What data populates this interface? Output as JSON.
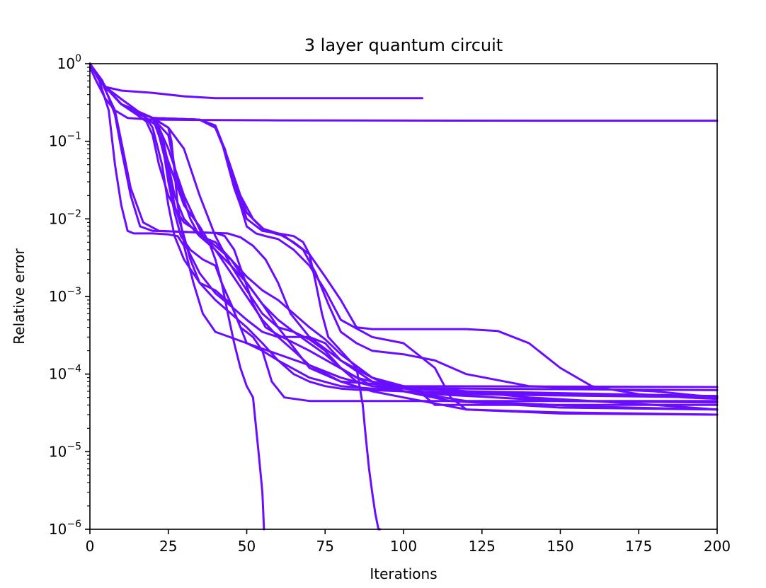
{
  "chart_data": {
    "type": "line",
    "title": "3 layer quantum circuit",
    "xlabel": "Iterations",
    "ylabel": "Relative error",
    "xlim": [
      0,
      200
    ],
    "ylim": [
      1e-06,
      1
    ],
    "yscale": "log",
    "grid": false,
    "legend": "none",
    "line_color": "#6a0dff",
    "x_ticks": [
      0,
      25,
      50,
      75,
      100,
      125,
      150,
      175,
      200
    ],
    "x_tick_labels": [
      "0",
      "25",
      "50",
      "75",
      "100",
      "125",
      "150",
      "175",
      "200"
    ],
    "y_ticks": [
      {
        "value": 1,
        "base": "10",
        "exp": "0"
      },
      {
        "value": 0.1,
        "base": "10",
        "exp": "−1"
      },
      {
        "value": 0.01,
        "base": "10",
        "exp": "−2"
      },
      {
        "value": 0.001,
        "base": "10",
        "exp": "−3"
      },
      {
        "value": 0.0001,
        "base": "10",
        "exp": "−4"
      },
      {
        "value": 1e-05,
        "base": "10",
        "exp": "−5"
      },
      {
        "value": 1e-06,
        "base": "10",
        "exp": "−6"
      }
    ],
    "series": [
      {
        "x": [
          0,
          2,
          5,
          10,
          20,
          30,
          40,
          60,
          80,
          106
        ],
        "y": [
          1.0,
          0.75,
          0.5,
          0.45,
          0.42,
          0.38,
          0.36,
          0.36,
          0.36,
          0.36
        ]
      },
      {
        "x": [
          0,
          2,
          5,
          8,
          12,
          20,
          35,
          60,
          100,
          150,
          200
        ],
        "y": [
          0.9,
          0.6,
          0.35,
          0.25,
          0.2,
          0.19,
          0.188,
          0.186,
          0.185,
          0.184,
          0.184
        ]
      },
      {
        "x": [
          0,
          3,
          6,
          8,
          10,
          12,
          14,
          20,
          25,
          28,
          30,
          33,
          36,
          40,
          50,
          70,
          80,
          90,
          100,
          120,
          150,
          200
        ],
        "y": [
          1.0,
          0.6,
          0.25,
          0.05,
          0.015,
          0.007,
          0.0065,
          0.0065,
          0.0063,
          0.006,
          0.0045,
          0.0015,
          0.0006,
          0.00035,
          0.00025,
          0.00013,
          8e-05,
          6e-05,
          5e-05,
          3.5e-05,
          3.1e-05,
          3e-05
        ]
      },
      {
        "x": [
          0,
          4,
          8,
          10,
          13,
          16,
          20,
          30,
          40,
          43,
          46,
          49,
          52,
          56,
          60,
          70,
          90,
          120,
          160,
          200
        ],
        "y": [
          1.0,
          0.6,
          0.22,
          0.08,
          0.02,
          0.008,
          0.007,
          0.0068,
          0.0066,
          0.006,
          0.004,
          0.0018,
          0.0008,
          0.0004,
          0.00032,
          0.0002,
          7e-05,
          4.5e-05,
          3.8e-05,
          3.5e-05
        ]
      },
      {
        "x": [
          0,
          4,
          8,
          10,
          13,
          17,
          22,
          30,
          44,
          48,
          52,
          56,
          60,
          64,
          70,
          80,
          90,
          110,
          150,
          200
        ],
        "y": [
          1.0,
          0.55,
          0.25,
          0.1,
          0.025,
          0.009,
          0.007,
          0.0068,
          0.0065,
          0.0058,
          0.0045,
          0.003,
          0.0015,
          0.0006,
          0.0003,
          0.00015,
          8e-05,
          5.5e-05,
          4.5e-05,
          4.3e-05
        ]
      },
      {
        "x": [
          0,
          5,
          10,
          15,
          18,
          20,
          22,
          25,
          28,
          30,
          33,
          36,
          40,
          45,
          50,
          55,
          60,
          65,
          70,
          75,
          80,
          90,
          100,
          115,
          150,
          200
        ],
        "y": [
          1.0,
          0.5,
          0.3,
          0.22,
          0.18,
          0.12,
          0.05,
          0.02,
          0.012,
          0.009,
          0.0075,
          0.006,
          0.0045,
          0.003,
          0.0018,
          0.0012,
          0.0009,
          0.0006,
          0.0004,
          0.00028,
          0.00018,
          9e-05,
          6e-05,
          4.5e-05,
          3.7e-05,
          3.5e-05
        ]
      },
      {
        "x": [
          0,
          5,
          10,
          18,
          20,
          23,
          25,
          27,
          30,
          35,
          40,
          45,
          50,
          55,
          60,
          70,
          80,
          90,
          100,
          120,
          200
        ],
        "y": [
          1.0,
          0.5,
          0.3,
          0.2,
          0.15,
          0.05,
          0.015,
          0.006,
          0.003,
          0.0015,
          0.0009,
          0.0006,
          0.0004,
          0.00025,
          0.00015,
          9e-05,
          7e-05,
          6.5e-05,
          6e-05,
          5.5e-05,
          5e-05
        ]
      },
      {
        "x": [
          0,
          5,
          10,
          20,
          22,
          25,
          27,
          30,
          32,
          35,
          40,
          45,
          48,
          52,
          55,
          58,
          62,
          70,
          80,
          90,
          110,
          200
        ],
        "y": [
          1.0,
          0.5,
          0.3,
          0.2,
          0.12,
          0.04,
          0.015,
          0.006,
          0.003,
          0.0015,
          0.0012,
          0.0008,
          0.0004,
          0.0003,
          0.0002,
          8e-05,
          5e-05,
          4.5e-05,
          4.5e-05,
          4.5e-05,
          4.5e-05,
          4.5e-05
        ]
      },
      {
        "x": [
          0,
          5,
          10,
          20,
          23,
          25,
          27,
          29,
          32,
          36,
          40,
          42,
          44,
          46,
          48,
          50,
          52,
          53,
          54,
          55,
          55.5
        ],
        "y": [
          1.0,
          0.5,
          0.3,
          0.2,
          0.1,
          0.03,
          0.012,
          0.006,
          0.004,
          0.003,
          0.0025,
          0.0015,
          0.0006,
          0.00025,
          0.00012,
          7e-05,
          5e-05,
          2e-05,
          8e-06,
          3e-06,
          1e-06
        ]
      },
      {
        "x": [
          0,
          5,
          10,
          20,
          23,
          25,
          27,
          30,
          35,
          40,
          45,
          50,
          55,
          60,
          65,
          70,
          80,
          90,
          100,
          120,
          200
        ],
        "y": [
          1.0,
          0.5,
          0.3,
          0.2,
          0.12,
          0.05,
          0.02,
          0.01,
          0.006,
          0.004,
          0.002,
          0.001,
          0.0005,
          0.0003,
          0.0002,
          0.00013,
          9e-05,
          7e-05,
          6.5e-05,
          6e-05,
          5.2e-05
        ]
      },
      {
        "x": [
          0,
          5,
          10,
          20,
          25,
          26,
          27,
          28,
          30,
          35,
          40,
          45,
          50,
          55,
          60,
          70,
          75,
          80,
          90,
          100,
          120,
          140,
          160,
          180,
          200
        ],
        "y": [
          1.0,
          0.5,
          0.3,
          0.2,
          0.15,
          0.1,
          0.04,
          0.015,
          0.005,
          0.002,
          0.0011,
          0.00075,
          0.0005,
          0.00035,
          0.0003,
          0.0003,
          0.00025,
          0.00015,
          9e-05,
          7e-05,
          6e-05,
          5e-05,
          4.5e-05,
          4e-05,
          3.5e-05
        ]
      },
      {
        "x": [
          0,
          5,
          10,
          20,
          35,
          40,
          42,
          44,
          46,
          48,
          50,
          53,
          56,
          60,
          65,
          70,
          75,
          80,
          90,
          100,
          110,
          115,
          120,
          150,
          200
        ],
        "y": [
          1.0,
          0.5,
          0.3,
          0.2,
          0.19,
          0.16,
          0.1,
          0.05,
          0.025,
          0.015,
          0.008,
          0.0065,
          0.006,
          0.0055,
          0.004,
          0.0025,
          0.0012,
          0.0005,
          0.0003,
          0.00025,
          0.00012,
          5e-05,
          3.5e-05,
          3.2e-05,
          3e-05
        ]
      },
      {
        "x": [
          0,
          5,
          10,
          20,
          35,
          40,
          43,
          46,
          50,
          55,
          60,
          65,
          68,
          70,
          72,
          74,
          76,
          80,
          85,
          87,
          88,
          89,
          90,
          91,
          92,
          92.5
        ],
        "y": [
          1.0,
          0.5,
          0.3,
          0.2,
          0.19,
          0.15,
          0.08,
          0.03,
          0.01,
          0.007,
          0.0065,
          0.006,
          0.005,
          0.0035,
          0.0015,
          0.0006,
          0.0003,
          0.0002,
          0.00012,
          4e-05,
          1.5e-05,
          6e-06,
          3e-06,
          1.6e-06,
          1e-06,
          1e-06
        ]
      },
      {
        "x": [
          0,
          5,
          10,
          20,
          35,
          40,
          43,
          46,
          50,
          55,
          60,
          65,
          70,
          75,
          80,
          85,
          90,
          100,
          110,
          120,
          130,
          140,
          150,
          160,
          175,
          190,
          200
        ],
        "y": [
          1.0,
          0.5,
          0.3,
          0.2,
          0.19,
          0.15,
          0.08,
          0.03,
          0.012,
          0.0075,
          0.0065,
          0.005,
          0.0035,
          0.0018,
          0.0009,
          0.0004,
          0.00038,
          0.00038,
          0.00038,
          0.00038,
          0.00036,
          0.00025,
          0.00012,
          7e-05,
          5.5e-05,
          5e-05,
          4.8e-05
        ]
      },
      {
        "x": [
          0,
          5,
          10,
          20,
          35,
          40,
          44,
          48,
          52,
          56,
          62,
          68,
          72,
          76,
          80,
          85,
          90,
          100,
          110,
          120,
          140,
          160,
          180,
          200
        ],
        "y": [
          1.0,
          0.5,
          0.3,
          0.2,
          0.19,
          0.15,
          0.06,
          0.02,
          0.01,
          0.007,
          0.006,
          0.004,
          0.002,
          0.0008,
          0.00035,
          0.00025,
          0.0002,
          0.00018,
          0.00015,
          0.0001,
          7e-05,
          6.5e-05,
          6e-05,
          5e-05
        ]
      },
      {
        "x": [
          0,
          5,
          10,
          20,
          30,
          35,
          38,
          40,
          42,
          45,
          48,
          50,
          55,
          60,
          65,
          70,
          75,
          80,
          85,
          90,
          100,
          120,
          150,
          200
        ],
        "y": [
          1.0,
          0.5,
          0.3,
          0.2,
          0.015,
          0.008,
          0.005,
          0.003,
          0.0015,
          0.0008,
          0.0004,
          0.00025,
          0.0002,
          0.00015,
          0.0001,
          8e-05,
          7e-05,
          6.5e-05,
          6.3e-05,
          6.2e-05,
          6e-05,
          5.7e-05,
          5.5e-05,
          5.2e-05
        ]
      },
      {
        "x": [
          0,
          5,
          10,
          20,
          25,
          30,
          35,
          40,
          45,
          50,
          55,
          60,
          65,
          70,
          75,
          80,
          85,
          90,
          100,
          110,
          120,
          200
        ],
        "y": [
          1.0,
          0.5,
          0.3,
          0.2,
          0.15,
          0.08,
          0.02,
          0.006,
          0.0025,
          0.0012,
          0.0006,
          0.0004,
          0.00035,
          0.00028,
          0.0002,
          0.00012,
          8e-05,
          7e-05,
          6.8e-05,
          6.6e-05,
          6.5e-05,
          6.2e-05
        ]
      },
      {
        "x": [
          0,
          5,
          10,
          15,
          18,
          22,
          25,
          30,
          36,
          40,
          45,
          50,
          55,
          60,
          70,
          80,
          90,
          100,
          200
        ],
        "y": [
          1.0,
          0.5,
          0.35,
          0.25,
          0.2,
          0.15,
          0.08,
          0.02,
          0.006,
          0.004,
          0.0025,
          0.0015,
          0.0008,
          0.0004,
          0.00012,
          8e-05,
          7.5e-05,
          7e-05,
          6.8e-05
        ]
      },
      {
        "x": [
          0,
          5,
          10,
          20,
          25,
          28,
          32,
          35,
          40,
          45,
          50,
          55,
          60,
          65,
          70,
          75,
          80,
          85,
          90,
          95,
          100,
          105,
          110,
          200
        ],
        "y": [
          1.0,
          0.5,
          0.3,
          0.2,
          0.12,
          0.03,
          0.01,
          0.006,
          0.005,
          0.003,
          0.0015,
          0.0008,
          0.0005,
          0.00035,
          0.00025,
          0.00018,
          0.00012,
          9e-05,
          8e-05,
          7.5e-05,
          7e-05,
          6e-05,
          4e-05,
          4e-05
        ]
      }
    ]
  }
}
